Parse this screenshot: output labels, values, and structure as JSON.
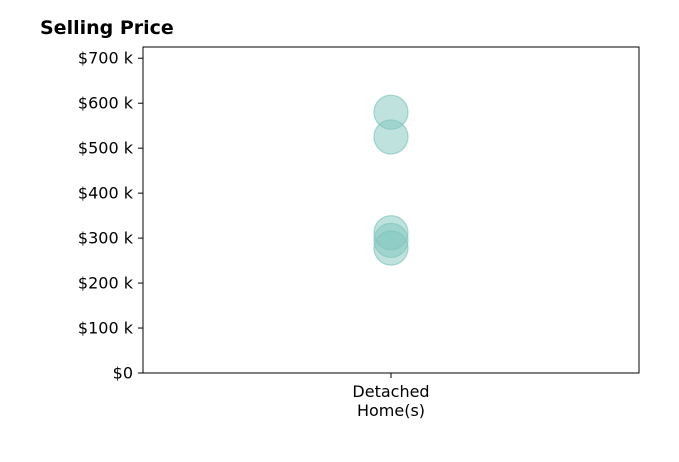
{
  "chart_data": {
    "type": "scatter",
    "title": "Selling Price",
    "xlabel": "",
    "ylabel": "",
    "categories": [
      [
        "Detached",
        "Home(s)"
      ]
    ],
    "series": [
      {
        "category_index": 0,
        "values": [
          580000,
          525000,
          312000,
          295000,
          278000
        ]
      }
    ],
    "ylim": [
      0,
      725000
    ],
    "y_ticks": [
      0,
      100000,
      200000,
      300000,
      400000,
      500000,
      600000,
      700000
    ],
    "y_tick_labels": [
      "$0",
      "$100 k",
      "$200 k",
      "$300 k",
      "$400 k",
      "$500 k",
      "$600 k",
      "$700 k"
    ],
    "marker_color": "#7fc6bd",
    "marker_opacity": 0.5,
    "grid": false,
    "legend": "none"
  }
}
